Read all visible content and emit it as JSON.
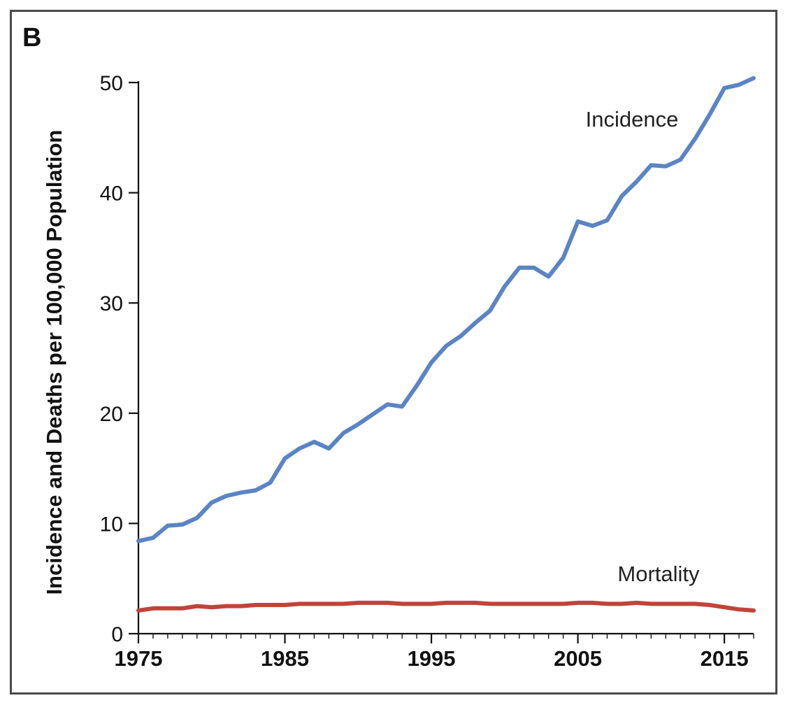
{
  "panel_label": "B",
  "chart_data": {
    "type": "line",
    "ylabel": "Incidence and Deaths per 100,000 Population",
    "xlabel": "",
    "xlim": [
      1975,
      2017
    ],
    "ylim": [
      0,
      50
    ],
    "x_ticks": [
      "1975",
      "1985",
      "1995",
      "2005",
      "2015"
    ],
    "y_ticks": [
      "0",
      "10",
      "20",
      "30",
      "40",
      "50"
    ],
    "grid": false,
    "legend": "inline labels",
    "x": [
      1975,
      1976,
      1977,
      1978,
      1979,
      1980,
      1981,
      1982,
      1983,
      1984,
      1985,
      1986,
      1987,
      1988,
      1989,
      1990,
      1991,
      1992,
      1993,
      1994,
      1995,
      1996,
      1997,
      1998,
      1999,
      2000,
      2001,
      2002,
      2003,
      2004,
      2005,
      2006,
      2007,
      2008,
      2009,
      2010,
      2011,
      2012,
      2013,
      2014,
      2015,
      2016,
      2017
    ],
    "series": [
      {
        "name": "Incidence",
        "color": "#5b84c4",
        "values": [
          8.4,
          8.7,
          9.8,
          9.9,
          10.5,
          11.9,
          12.5,
          12.8,
          13.0,
          13.7,
          15.9,
          16.8,
          17.4,
          16.8,
          18.2,
          19.0,
          19.9,
          20.8,
          20.6,
          22.5,
          24.6,
          26.1,
          27.0,
          28.2,
          29.3,
          31.5,
          33.2,
          33.2,
          32.4,
          34.1,
          37.4,
          37.0,
          37.5,
          39.7,
          41.0,
          42.5,
          42.4,
          43.0,
          44.9,
          47.1,
          49.5,
          49.8,
          50.4
        ]
      },
      {
        "name": "Mortality",
        "color": "#c0443a",
        "values": [
          2.1,
          2.3,
          2.3,
          2.3,
          2.5,
          2.4,
          2.5,
          2.5,
          2.6,
          2.6,
          2.6,
          2.7,
          2.7,
          2.7,
          2.7,
          2.8,
          2.8,
          2.8,
          2.7,
          2.7,
          2.7,
          2.8,
          2.8,
          2.8,
          2.7,
          2.7,
          2.7,
          2.7,
          2.7,
          2.7,
          2.8,
          2.8,
          2.7,
          2.7,
          2.8,
          2.7,
          2.7,
          2.7,
          2.7,
          2.6,
          2.4,
          2.2,
          2.1
        ]
      }
    ]
  }
}
